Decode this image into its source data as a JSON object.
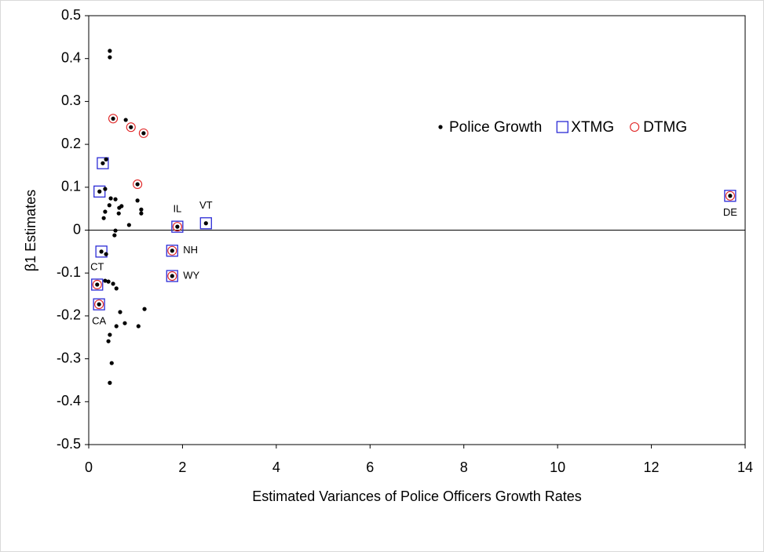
{
  "chart_data": {
    "type": "scatter",
    "xlabel": "Estimated Variances of Police Officers Growth Rates",
    "ylabel": "β1 Estimates",
    "xlim": [
      0,
      14
    ],
    "ylim": [
      -0.5,
      0.5
    ],
    "xticks": [
      0,
      2,
      4,
      6,
      8,
      10,
      12,
      14
    ],
    "yticks": [
      0.5,
      0.4,
      0.3,
      0.2,
      0.1,
      0,
      -0.1,
      -0.2,
      -0.3,
      -0.4,
      -0.5
    ],
    "zero_line": true,
    "series": [
      {
        "name": "Police Growth",
        "color": "#000000",
        "marker": "dot",
        "x": [
          0.45,
          0.45,
          0.52,
          0.79,
          0.9,
          1.17,
          0.37,
          0.3,
          1.04,
          0.35,
          0.23,
          0.47,
          0.57,
          1.04,
          0.44,
          0.7,
          0.65,
          1.12,
          1.12,
          0.64,
          0.35,
          0.32,
          0.86,
          0.57,
          0.55,
          1.89,
          2.5,
          13.68,
          1.78,
          0.27,
          0.37,
          1.78,
          0.35,
          0.42,
          0.18,
          0.52,
          0.59,
          0.22,
          1.19,
          0.67,
          0.77,
          0.59,
          1.06,
          0.45,
          0.42,
          0.49,
          0.45
        ],
        "values": [
          0.418,
          0.403,
          0.26,
          0.257,
          0.24,
          0.226,
          0.165,
          0.156,
          0.107,
          0.096,
          0.09,
          0.074,
          0.072,
          0.069,
          0.058,
          0.056,
          0.052,
          0.048,
          0.039,
          0.039,
          0.043,
          0.028,
          0.012,
          -0.001,
          -0.012,
          0.008,
          0.016,
          0.08,
          -0.048,
          -0.05,
          -0.056,
          -0.107,
          -0.118,
          -0.12,
          -0.127,
          -0.125,
          -0.136,
          -0.173,
          -0.184,
          -0.191,
          -0.217,
          -0.224,
          -0.224,
          -0.244,
          -0.259,
          -0.31,
          -0.356
        ]
      },
      {
        "name": "XTMG",
        "color": "#2b2bd6",
        "marker": "square",
        "x": [
          0.3,
          0.23,
          0.27,
          0.18,
          0.22,
          1.89,
          2.5,
          1.78,
          1.78,
          13.68
        ],
        "values": [
          0.156,
          0.09,
          -0.05,
          -0.127,
          -0.173,
          0.008,
          0.016,
          -0.048,
          -0.107,
          0.08
        ]
      },
      {
        "name": "DTMG",
        "color": "#e02020",
        "marker": "circle",
        "x": [
          0.52,
          0.9,
          1.17,
          1.04,
          0.18,
          0.22,
          1.89,
          1.78,
          1.78,
          13.68
        ],
        "values": [
          0.26,
          0.24,
          0.226,
          0.107,
          -0.127,
          -0.173,
          0.008,
          -0.048,
          -0.107,
          0.08
        ]
      }
    ],
    "annotations": [
      {
        "text": "IL",
        "x": 1.89,
        "y": 0.008,
        "position": "above"
      },
      {
        "text": "VT",
        "x": 2.5,
        "y": 0.016,
        "position": "above"
      },
      {
        "text": "DE",
        "x": 13.68,
        "y": 0.08,
        "position": "below"
      },
      {
        "text": "NH",
        "x": 1.78,
        "y": -0.048,
        "position": "right"
      },
      {
        "text": "WY",
        "x": 1.78,
        "y": -0.107,
        "position": "right"
      },
      {
        "text": "CT",
        "x": 0.18,
        "y": -0.127,
        "position": "above"
      },
      {
        "text": "CA",
        "x": 0.22,
        "y": -0.173,
        "position": "below"
      }
    ]
  }
}
